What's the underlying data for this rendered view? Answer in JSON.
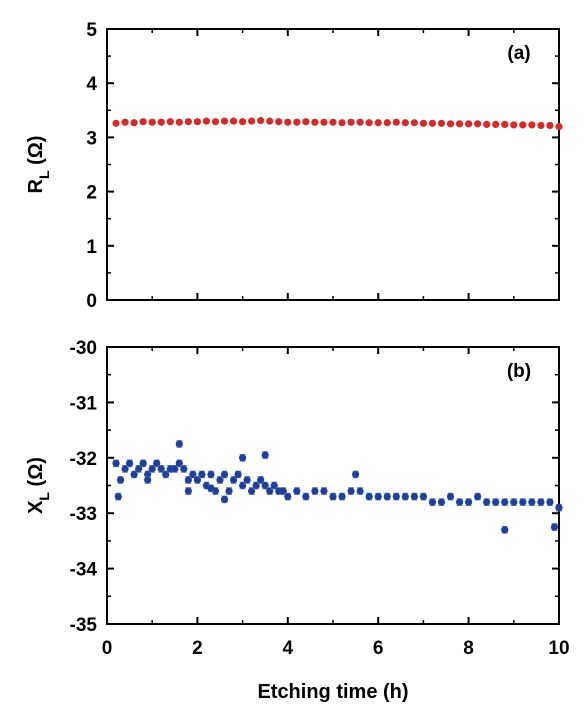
{
  "chart_data": [
    {
      "type": "scatter",
      "panel": "(a)",
      "xlabel": "",
      "ylabel": "R_L (Ω)",
      "ylabel_main": "R",
      "ylabel_sub": "L",
      "ylabel_unit": " (Ω)",
      "xlim": [
        0,
        10
      ],
      "ylim": [
        0,
        5
      ],
      "xticks": [
        0,
        2,
        4,
        6,
        8,
        10
      ],
      "xtick_labels": [
        "",
        "",
        "",
        "",
        "",
        ""
      ],
      "yticks": [
        0,
        1,
        2,
        3,
        4,
        5
      ],
      "ytick_labels": [
        "0",
        "1",
        "2",
        "3",
        "4",
        "5"
      ],
      "color": "#d42a2a",
      "error_bars": false,
      "series": [
        {
          "x": [
            0.2,
            0.4,
            0.6,
            0.8,
            1.0,
            1.2,
            1.4,
            1.6,
            1.8,
            2.0,
            2.2,
            2.4,
            2.6,
            2.8,
            3.0,
            3.2,
            3.4,
            3.6,
            3.8,
            4.0,
            4.2,
            4.4,
            4.6,
            4.8,
            5.0,
            5.2,
            5.4,
            5.6,
            5.8,
            6.0,
            6.2,
            6.4,
            6.6,
            6.8,
            7.0,
            7.2,
            7.4,
            7.6,
            7.8,
            8.0,
            8.2,
            8.4,
            8.6,
            8.8,
            9.0,
            9.2,
            9.4,
            9.6,
            9.8,
            10.0
          ],
          "y": [
            3.26,
            3.28,
            3.27,
            3.29,
            3.28,
            3.28,
            3.29,
            3.28,
            3.29,
            3.29,
            3.3,
            3.29,
            3.3,
            3.3,
            3.29,
            3.3,
            3.31,
            3.3,
            3.29,
            3.28,
            3.28,
            3.29,
            3.28,
            3.28,
            3.28,
            3.27,
            3.28,
            3.28,
            3.27,
            3.27,
            3.27,
            3.28,
            3.27,
            3.27,
            3.26,
            3.26,
            3.26,
            3.25,
            3.25,
            3.25,
            3.25,
            3.24,
            3.24,
            3.24,
            3.23,
            3.23,
            3.23,
            3.22,
            3.22,
            3.2
          ]
        }
      ]
    },
    {
      "type": "scatter",
      "panel": "(b)",
      "xlabel": "Etching time (h)",
      "ylabel": "X_L (Ω)",
      "ylabel_main": "X",
      "ylabel_sub": "L",
      "ylabel_unit": " (Ω)",
      "xlim": [
        0,
        10
      ],
      "ylim": [
        -35,
        -30
      ],
      "xticks": [
        0,
        2,
        4,
        6,
        8,
        10
      ],
      "xtick_labels": [
        "0",
        "2",
        "4",
        "6",
        "8",
        "10"
      ],
      "yticks": [
        -35,
        -34,
        -33,
        -32,
        -31,
        -30
      ],
      "ytick_labels": [
        "-35",
        "-34",
        "-33",
        "-32",
        "-31",
        "-30"
      ],
      "color": "#1f3f99",
      "error_bars": true,
      "series": [
        {
          "x": [
            0.2,
            0.3,
            0.4,
            0.5,
            0.6,
            0.7,
            0.8,
            0.9,
            1.0,
            1.1,
            1.2,
            1.3,
            1.4,
            1.5,
            1.6,
            1.7,
            1.8,
            1.9,
            2.0,
            2.1,
            2.2,
            2.3,
            2.4,
            2.5,
            2.6,
            2.7,
            2.8,
            2.9,
            3.0,
            3.1,
            3.2,
            3.3,
            3.4,
            3.5,
            3.6,
            3.7,
            3.8,
            3.9,
            4.0,
            4.2,
            4.4,
            4.6,
            4.8,
            5.0,
            5.2,
            5.4,
            5.6,
            5.8,
            6.0,
            6.2,
            6.4,
            6.6,
            6.8,
            7.0,
            7.2,
            7.4,
            7.6,
            7.8,
            8.0,
            8.2,
            8.4,
            8.6,
            8.8,
            9.0,
            9.2,
            9.4,
            9.6,
            9.8,
            10.0,
            0.25,
            0.9,
            1.6,
            1.8,
            2.3,
            2.6,
            3.0,
            3.5,
            5.5,
            8.8,
            9.9
          ],
          "y": [
            -32.1,
            -32.4,
            -32.2,
            -32.1,
            -32.3,
            -32.2,
            -32.1,
            -32.3,
            -32.2,
            -32.1,
            -32.2,
            -32.3,
            -32.2,
            -32.2,
            -32.1,
            -32.2,
            -32.4,
            -32.3,
            -32.4,
            -32.3,
            -32.5,
            -32.3,
            -32.6,
            -32.4,
            -32.3,
            -32.6,
            -32.4,
            -32.3,
            -32.5,
            -32.4,
            -32.6,
            -32.5,
            -32.4,
            -32.5,
            -32.6,
            -32.5,
            -32.6,
            -32.6,
            -32.7,
            -32.6,
            -32.7,
            -32.6,
            -32.6,
            -32.7,
            -32.7,
            -32.6,
            -32.6,
            -32.7,
            -32.7,
            -32.7,
            -32.7,
            -32.7,
            -32.7,
            -32.7,
            -32.8,
            -32.8,
            -32.7,
            -32.8,
            -32.8,
            -32.7,
            -32.8,
            -32.8,
            -32.8,
            -32.8,
            -32.8,
            -32.8,
            -32.8,
            -32.8,
            -32.9,
            -32.7,
            -32.4,
            -31.75,
            -32.6,
            -32.55,
            -32.75,
            -32.0,
            -31.95,
            -32.3,
            -33.3,
            -33.25
          ],
          "error": 0.06
        }
      ]
    }
  ]
}
